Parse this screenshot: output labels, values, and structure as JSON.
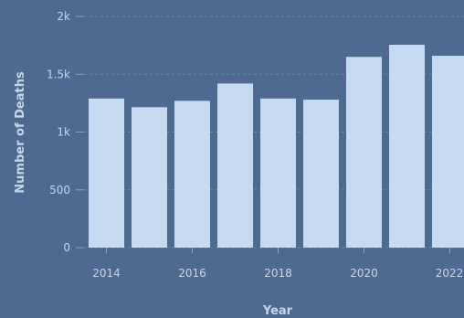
{
  "chart_data": {
    "type": "bar",
    "title": "",
    "xlabel": "Year",
    "ylabel": "Number of Deaths",
    "categories": [
      "2014",
      "2015",
      "2016",
      "2017",
      "2018",
      "2019",
      "2020",
      "2021",
      "2022"
    ],
    "values": [
      1290,
      1215,
      1270,
      1420,
      1290,
      1280,
      1650,
      1755,
      1660
    ],
    "ylim": [
      0,
      2000
    ],
    "yticks": [
      0,
      500,
      1000,
      1500,
      2000
    ],
    "ytick_labels": [
      "0",
      "500",
      "1k",
      "1.5k",
      "2k"
    ],
    "xtick_labels": [
      "2014",
      "2016",
      "2018",
      "2020",
      "2022"
    ],
    "grid": "horizontal-dashed",
    "colors": {
      "background": "#4f6a91",
      "bar": "#c7daf1",
      "text": "#c6d6ec",
      "grid": "#6a82a6"
    }
  }
}
